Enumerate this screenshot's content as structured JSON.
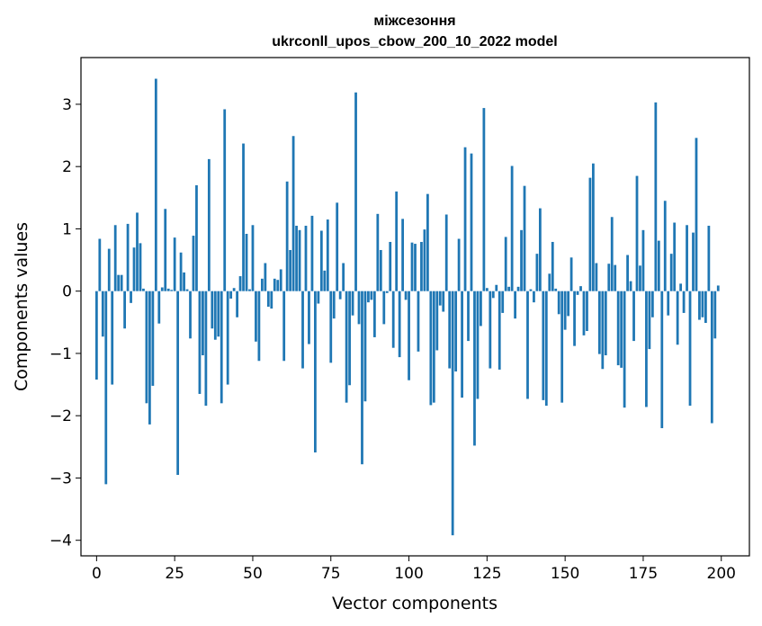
{
  "chart_data": {
    "type": "bar",
    "title": "міжсезоння",
    "subtitle": "ukrconll_upos_cbow_200_10_2022 model",
    "xlabel": "Vector components",
    "ylabel": "Components values",
    "xlim": [
      -5,
      209
    ],
    "ylim": [
      -4.25,
      3.75
    ],
    "xticks": [
      0,
      25,
      50,
      75,
      100,
      125,
      150,
      175,
      200
    ],
    "yticks": [
      -4,
      -3,
      -2,
      -1,
      0,
      1,
      2,
      3
    ],
    "bar_color": "#1f77b4",
    "grid": false,
    "legend": "none",
    "x": [
      0,
      1,
      2,
      3,
      4,
      5,
      6,
      7,
      8,
      9,
      10,
      11,
      12,
      13,
      14,
      15,
      16,
      17,
      18,
      19,
      20,
      21,
      22,
      23,
      24,
      25,
      26,
      27,
      28,
      29,
      30,
      31,
      32,
      33,
      34,
      35,
      36,
      37,
      38,
      39,
      40,
      41,
      42,
      43,
      44,
      45,
      46,
      47,
      48,
      49,
      50,
      51,
      52,
      53,
      54,
      55,
      56,
      57,
      58,
      59,
      60,
      61,
      62,
      63,
      64,
      65,
      66,
      67,
      68,
      69,
      70,
      71,
      72,
      73,
      74,
      75,
      76,
      77,
      78,
      79,
      80,
      81,
      82,
      83,
      84,
      85,
      86,
      87,
      88,
      89,
      90,
      91,
      92,
      93,
      94,
      95,
      96,
      97,
      98,
      99,
      100,
      101,
      102,
      103,
      104,
      105,
      106,
      107,
      108,
      109,
      110,
      111,
      112,
      113,
      114,
      115,
      116,
      117,
      118,
      119,
      120,
      121,
      122,
      123,
      124,
      125,
      126,
      127,
      128,
      129,
      130,
      131,
      132,
      133,
      134,
      135,
      136,
      137,
      138,
      139,
      140,
      141,
      142,
      143,
      144,
      145,
      146,
      147,
      148,
      149,
      150,
      151,
      152,
      153,
      154,
      155,
      156,
      157,
      158,
      159,
      160,
      161,
      162,
      163,
      164,
      165,
      166,
      167,
      168,
      169,
      170,
      171,
      172,
      173,
      174,
      175,
      176,
      177,
      178,
      179,
      180,
      181,
      182,
      183,
      184,
      185,
      186,
      187,
      188,
      189,
      190,
      191,
      192,
      193,
      194,
      195,
      196,
      197,
      198,
      199
    ],
    "values": [
      -1.42,
      0.84,
      -0.73,
      -3.1,
      0.68,
      -1.5,
      1.06,
      0.26,
      0.26,
      -0.6,
      1.08,
      -0.19,
      0.7,
      1.26,
      0.77,
      0.04,
      -1.8,
      -2.14,
      -1.52,
      3.41,
      -0.52,
      0.06,
      1.32,
      0.04,
      0.02,
      0.86,
      -2.95,
      0.62,
      0.3,
      0.03,
      -0.76,
      0.89,
      1.7,
      -1.65,
      -1.03,
      -1.84,
      2.12,
      -0.6,
      -0.78,
      -0.73,
      -1.8,
      2.92,
      -1.5,
      -0.12,
      0.05,
      -0.42,
      0.24,
      2.37,
      0.92,
      0.03,
      1.06,
      -0.81,
      -1.12,
      0.2,
      0.45,
      -0.25,
      -0.28,
      0.2,
      0.18,
      0.35,
      -1.12,
      1.76,
      0.66,
      2.49,
      1.05,
      0.98,
      -1.24,
      1.05,
      -0.85,
      1.21,
      -2.59,
      -0.2,
      0.97,
      0.33,
      1.15,
      -1.15,
      -0.44,
      1.42,
      -0.13,
      0.45,
      -1.79,
      -1.51,
      -0.39,
      3.19,
      -0.53,
      -2.78,
      -1.77,
      -0.18,
      -0.14,
      -0.74,
      1.24,
      0.66,
      -0.53,
      -0.03,
      0.79,
      -0.91,
      1.6,
      -1.06,
      1.16,
      -0.14,
      -1.43,
      0.78,
      0.76,
      -0.97,
      0.79,
      0.99,
      1.56,
      -1.83,
      -1.79,
      -0.95,
      -0.23,
      -0.33,
      1.23,
      -1.24,
      -3.92,
      -1.29,
      0.84,
      -1.71,
      2.31,
      -0.8,
      2.21,
      -2.48,
      -1.73,
      -0.56,
      2.94,
      0.05,
      -1.24,
      -0.11,
      0.1,
      -1.26,
      -0.35,
      0.87,
      0.07,
      2.01,
      -0.44,
      0.07,
      0.98,
      1.69,
      -1.73,
      0.03,
      -0.18,
      0.6,
      1.33,
      -1.75,
      -1.84,
      0.28,
      0.79,
      0.04,
      -0.37,
      -1.79,
      -0.62,
      -0.4,
      0.54,
      -0.88,
      -0.06,
      0.08,
      -0.71,
      -0.64,
      1.82,
      2.05,
      0.45,
      -1.01,
      -1.25,
      -1.03,
      0.44,
      1.19,
      0.42,
      -1.19,
      -1.23,
      -1.87,
      0.58,
      0.16,
      -0.8,
      1.85,
      0.41,
      0.98,
      -1.86,
      -0.93,
      -0.42,
      3.03,
      0.81,
      -2.2,
      1.45,
      -0.39,
      0.6,
      1.1,
      -0.86,
      0.12,
      -0.35,
      1.06,
      -1.84,
      0.94,
      2.46,
      -0.46,
      -0.42,
      -0.51,
      1.05,
      -2.12,
      -0.76,
      0.09
    ]
  }
}
